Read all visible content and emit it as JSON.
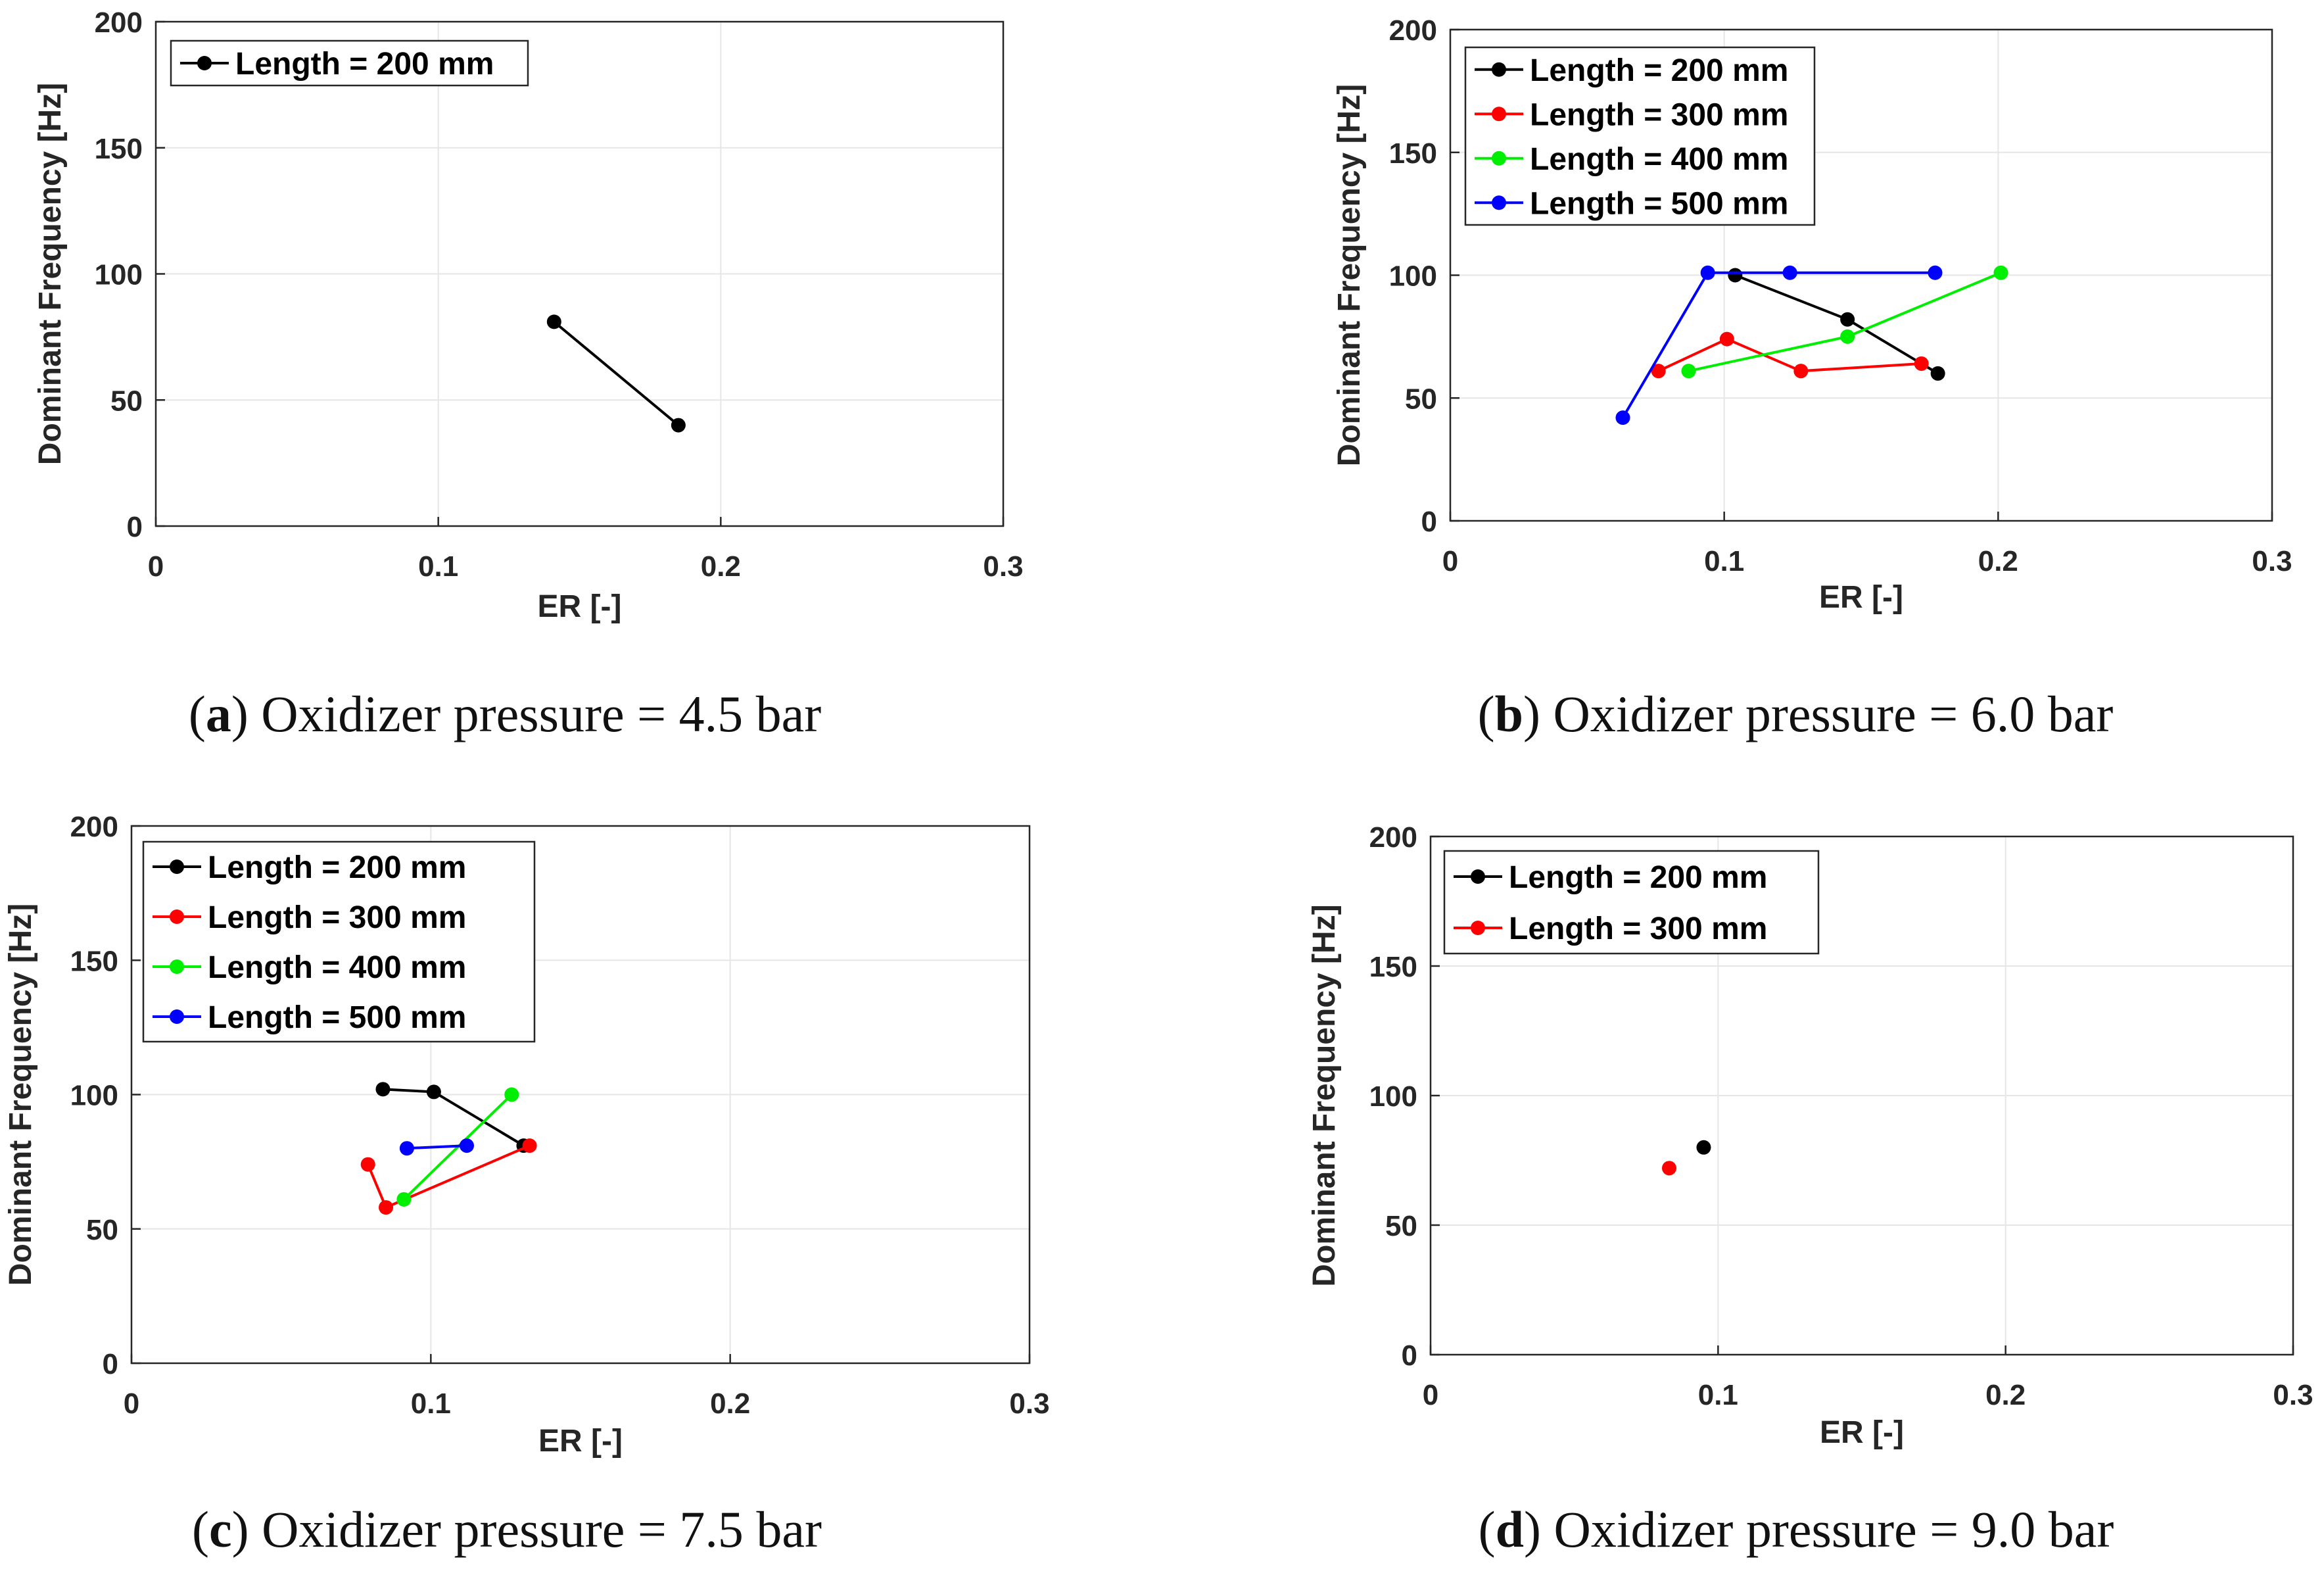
{
  "colors": {
    "black": "#000000",
    "red": "#ff0000",
    "green": "#00ee00",
    "blue": "#0000ff",
    "grid": "#e6e6e6",
    "axis": "#262626"
  },
  "chart_data": [
    {
      "type": "line",
      "caption_letter": "a",
      "caption_text": "Oxidizer pressure = 4.5 bar",
      "xlabel": "ER [-]",
      "ylabel": "Dominant Frequency [Hz]",
      "xlim": [
        0,
        0.3
      ],
      "ylim": [
        0,
        200
      ],
      "xticks": [
        0,
        0.1,
        0.2,
        0.3
      ],
      "xtick_labels": [
        "0",
        "0.1",
        "0.2",
        "0.3"
      ],
      "yticks": [
        0,
        50,
        100,
        150,
        200
      ],
      "ytick_labels": [
        "0",
        "50",
        "100",
        "150",
        "200"
      ],
      "grid": true,
      "legend_position": "top-left",
      "series": [
        {
          "name": "Length = 200 mm",
          "color": "#000000",
          "x": [
            0.141,
            0.185
          ],
          "y": [
            81,
            40
          ]
        }
      ]
    },
    {
      "type": "line",
      "caption_letter": "b",
      "caption_text": "Oxidizer pressure = 6.0 bar",
      "xlabel": "ER [-]",
      "ylabel": "Dominant Frequency [Hz]",
      "xlim": [
        0,
        0.3
      ],
      "ylim": [
        0,
        200
      ],
      "xticks": [
        0,
        0.1,
        0.2,
        0.3
      ],
      "xtick_labels": [
        "0",
        "0.1",
        "0.2",
        "0.3"
      ],
      "yticks": [
        0,
        50,
        100,
        150,
        200
      ],
      "ytick_labels": [
        "0",
        "50",
        "100",
        "150",
        "200"
      ],
      "grid": true,
      "legend_position": "top-left",
      "series": [
        {
          "name": "Length = 200 mm",
          "color": "#000000",
          "x": [
            0.104,
            0.145,
            0.178
          ],
          "y": [
            100,
            82,
            60
          ]
        },
        {
          "name": "Length = 300 mm",
          "color": "#ff0000",
          "x": [
            0.076,
            0.101,
            0.128,
            0.172
          ],
          "y": [
            61,
            74,
            61,
            64
          ]
        },
        {
          "name": "Length = 400 mm",
          "color": "#00ee00",
          "x": [
            0.087,
            0.145,
            0.201
          ],
          "y": [
            61,
            75,
            101
          ]
        },
        {
          "name": "Length = 500 mm",
          "color": "#0000ff",
          "x": [
            0.063,
            0.094,
            0.124,
            0.177
          ],
          "y": [
            42,
            101,
            101,
            101
          ]
        }
      ]
    },
    {
      "type": "line",
      "caption_letter": "c",
      "caption_text": "Oxidizer pressure = 7.5 bar",
      "xlabel": "ER [-]",
      "ylabel": "Dominant Frequency [Hz]",
      "xlim": [
        0,
        0.3
      ],
      "ylim": [
        0,
        200
      ],
      "xticks": [
        0,
        0.1,
        0.2,
        0.3
      ],
      "xtick_labels": [
        "0",
        "0.1",
        "0.2",
        "0.3"
      ],
      "yticks": [
        0,
        50,
        100,
        150,
        200
      ],
      "ytick_labels": [
        "0",
        "50",
        "100",
        "150",
        "200"
      ],
      "grid": true,
      "legend_position": "top-left",
      "series": [
        {
          "name": "Length = 200 mm",
          "color": "#000000",
          "x": [
            0.084,
            0.101,
            0.131
          ],
          "y": [
            102,
            101,
            81
          ]
        },
        {
          "name": "Length = 300 mm",
          "color": "#ff0000",
          "x": [
            0.079,
            0.085,
            0.133
          ],
          "y": [
            74,
            58,
            81
          ]
        },
        {
          "name": "Length = 400 mm",
          "color": "#00ee00",
          "x": [
            0.091,
            0.127
          ],
          "y": [
            61,
            100
          ]
        },
        {
          "name": "Length = 500 mm",
          "color": "#0000ff",
          "x": [
            0.092,
            0.112
          ],
          "y": [
            80,
            81
          ]
        }
      ]
    },
    {
      "type": "scatter",
      "caption_letter": "d",
      "caption_text": "Oxidizer pressure = 9.0 bar",
      "xlabel": "ER [-]",
      "ylabel": "Dominant Frequency [Hz]",
      "xlim": [
        0,
        0.3
      ],
      "ylim": [
        0,
        200
      ],
      "xticks": [
        0,
        0.1,
        0.2,
        0.3
      ],
      "xtick_labels": [
        "0",
        "0.1",
        "0.2",
        "0.3"
      ],
      "yticks": [
        0,
        50,
        100,
        150,
        200
      ],
      "ytick_labels": [
        "0",
        "50",
        "100",
        "150",
        "200"
      ],
      "grid": true,
      "legend_position": "top-left",
      "series": [
        {
          "name": "Length = 200 mm",
          "color": "#000000",
          "x": [
            0.095
          ],
          "y": [
            80
          ]
        },
        {
          "name": "Length = 300 mm",
          "color": "#ff0000",
          "x": [
            0.083
          ],
          "y": [
            72
          ]
        }
      ]
    }
  ]
}
